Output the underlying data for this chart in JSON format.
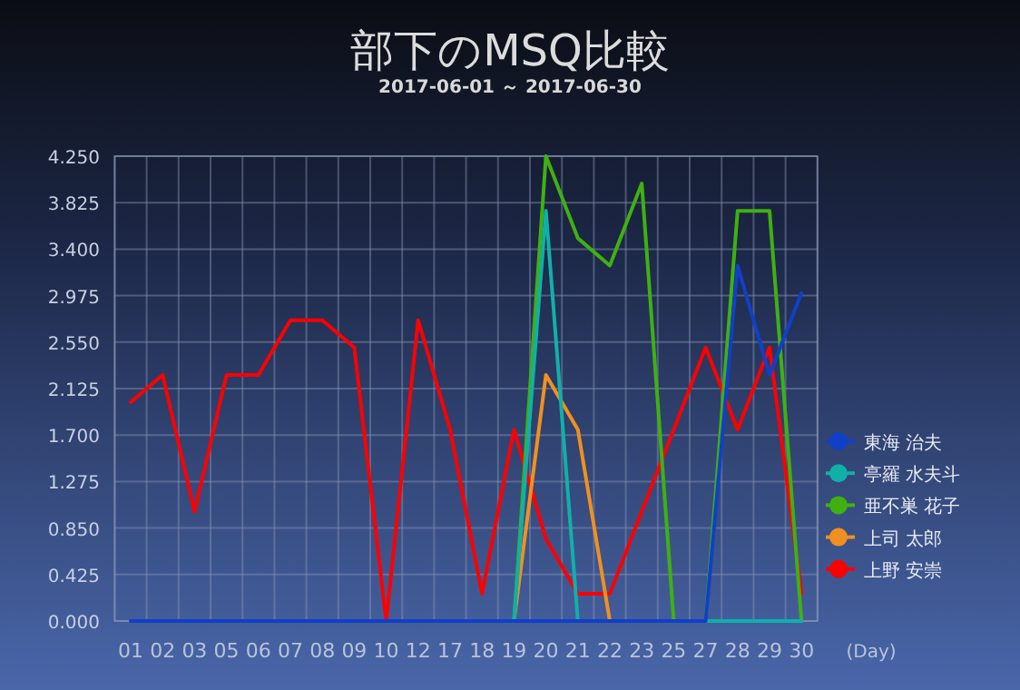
{
  "chart_data": {
    "type": "line",
    "title": "部下のMSQ比較",
    "subtitle": "2017-06-01 ～ 2017-06-30",
    "xlabel": "(Day)",
    "categories": [
      "01",
      "02",
      "03",
      "05",
      "06",
      "07",
      "08",
      "09",
      "10",
      "12",
      "17",
      "18",
      "19",
      "20",
      "21",
      "22",
      "23",
      "25",
      "27",
      "28",
      "29",
      "30"
    ],
    "series": [
      {
        "name": "東海 治夫",
        "color": "#1040c8",
        "values": [
          0,
          0,
          0,
          0,
          0,
          0,
          0,
          0,
          0,
          0,
          0,
          0,
          0,
          0,
          0,
          0,
          0,
          0,
          0,
          3.25,
          2.25,
          3.0
        ]
      },
      {
        "name": "亭羅 水夫斗",
        "color": "#10b0a8",
        "values": [
          null,
          null,
          null,
          null,
          null,
          null,
          null,
          null,
          null,
          null,
          null,
          null,
          0,
          3.75,
          0,
          null,
          null,
          null,
          0,
          0,
          0,
          0
        ]
      },
      {
        "name": "亜不巣 花子",
        "color": "#40b010",
        "values": [
          null,
          null,
          null,
          null,
          null,
          null,
          null,
          null,
          null,
          null,
          null,
          null,
          0,
          4.25,
          3.5,
          3.25,
          4.0,
          0,
          0,
          3.75,
          3.75,
          0
        ]
      },
      {
        "name": "上司 太郎",
        "color": "#f09020",
        "values": [
          null,
          null,
          null,
          null,
          null,
          null,
          null,
          null,
          null,
          null,
          null,
          null,
          0,
          2.25,
          1.75,
          0,
          null,
          null,
          null,
          null,
          null,
          null
        ]
      },
      {
        "name": "上野 安崇",
        "color": "#ff0000",
        "values": [
          2.0,
          2.25,
          1.0,
          2.25,
          2.25,
          2.75,
          2.75,
          2.5,
          0,
          2.75,
          1.75,
          0.25,
          1.75,
          0.75,
          0.25,
          0.25,
          1.0,
          1.75,
          2.5,
          1.75,
          2.5,
          0.25
        ]
      }
    ],
    "ylim": [
      0,
      4.25
    ],
    "yticks": [
      {
        "value": 0,
        "label": "0.000"
      },
      {
        "value": 0.425,
        "label": "0.425"
      },
      {
        "value": 0.85,
        "label": "0.850"
      },
      {
        "value": 1.275,
        "label": "1.275"
      },
      {
        "value": 1.7,
        "label": "1.700"
      },
      {
        "value": 2.125,
        "label": "2.125"
      },
      {
        "value": 2.55,
        "label": "2.550"
      },
      {
        "value": 2.975,
        "label": "2.975"
      },
      {
        "value": 3.4,
        "label": "3.400"
      },
      {
        "value": 3.825,
        "label": "3.825"
      },
      {
        "value": 4.25,
        "label": "4.250"
      }
    ],
    "grid": true,
    "legend": "right"
  }
}
